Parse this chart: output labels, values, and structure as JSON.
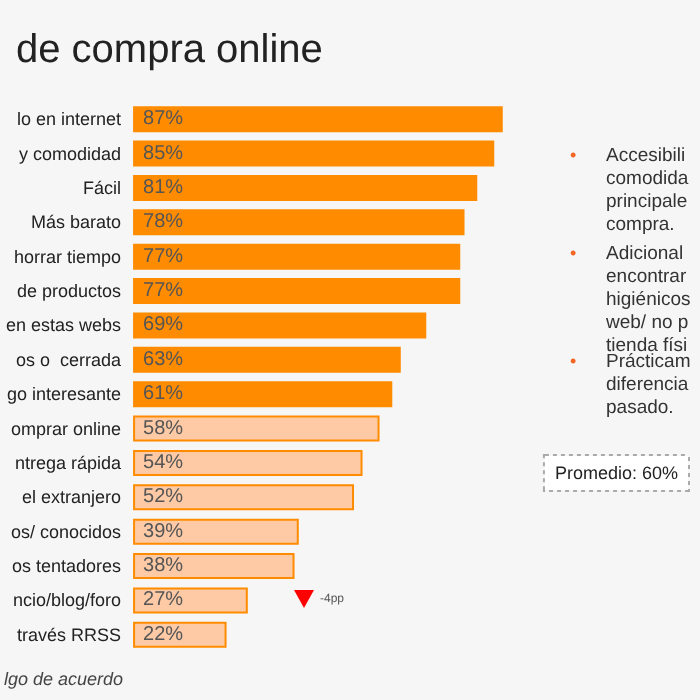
{
  "chart_data": {
    "type": "bar",
    "orientation": "horizontal",
    "relative": false,
    "title": "de compra online",
    "categories": [
      "lo en internet",
      "y comodidad",
      "Fácil",
      "Más barato",
      "horrar tiempo",
      "de productos",
      "en estas webs",
      "os o  cerrada",
      "go interesante",
      "omprar online",
      "ntrega rápida",
      "el extranjero",
      "os/ conocidos",
      "os tentadores",
      "ncio/blog/foro",
      "través RRSS"
    ],
    "values": [
      87,
      85,
      81,
      78,
      77,
      77,
      69,
      63,
      61,
      58,
      54,
      52,
      39,
      38,
      27,
      22
    ],
    "value_labels": [
      "87%",
      "85%",
      "81%",
      "78%",
      "77%",
      "77%",
      "69%",
      "63%",
      "61%",
      "58%",
      "54%",
      "52%",
      "39%",
      "38%",
      "27%",
      "22%"
    ],
    "color": "#ff8c00",
    "colors": [
      "#ff8c00",
      "#ff8c00",
      "#ff8c00",
      "#ff8c00",
      "#ff8c00",
      "#ff8c00",
      "#ff8c00",
      "#ff8c00",
      "#ff8c00",
      "#fdcaa5",
      "#fdcaa5",
      "#fdcaa5",
      "#fdcaa5",
      "#fdcaa5",
      "#fdcaa5",
      "#fdcaa5"
    ],
    "tick_labels": false,
    "grid": false,
    "annotations": [
      "Promedio: 60%",
      "-4pp",
      "• Accesibili\ncomodida\nprincipale\ncompra.",
      "• Adicional\nencontrar\nhigiénicos\nweb/ no p\ntienda físi",
      "• Prácticam\ndiferencia\npasado.",
      "lgo de acuerdo"
    ]
  }
}
